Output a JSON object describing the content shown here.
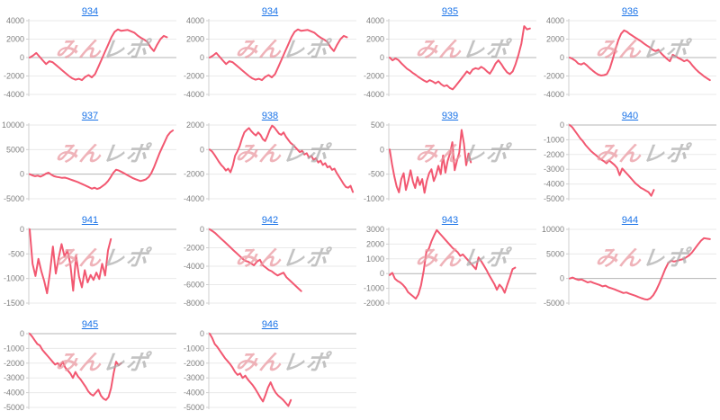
{
  "page": {
    "background": "#ffffff"
  },
  "watermark": {
    "part1": "みん",
    "part2": "レポ"
  },
  "style": {
    "line_color": "#f25871",
    "link_color": "#1a73e8",
    "axis_label_color": "#7f7f7f",
    "grid_color": "#eaeaea",
    "zero_line_color": "#b4b4b4",
    "axis_line_color": "#cfcfcf",
    "watermark_part1_color": "rgba(233,153,161,0.75)",
    "watermark_part2_color": "rgba(172,172,172,0.72)"
  },
  "chart_data": [
    {
      "type": "line",
      "title": "934",
      "ylim": [
        -4000,
        4000
      ],
      "y_ticks": [
        4000,
        2000,
        0,
        -2000,
        -4000
      ],
      "x_span": 0.93,
      "values": [
        0,
        200,
        500,
        100,
        -300,
        -700,
        -400,
        -500,
        -800,
        -1100,
        -1400,
        -1700,
        -2000,
        -2250,
        -2400,
        -2300,
        -2450,
        -2100,
        -1900,
        -2150,
        -1800,
        -1000,
        -200,
        600,
        1400,
        2200,
        2800,
        3050,
        2900,
        2950,
        3000,
        2850,
        2700,
        2400,
        2150,
        1950,
        1700,
        1100,
        700,
        1400,
        2000,
        2350,
        2200
      ]
    },
    {
      "type": "line",
      "title": "934",
      "ylim": [
        -4000,
        4000
      ],
      "y_ticks": [
        4000,
        2000,
        0,
        -2000,
        -4000
      ],
      "x_span": 0.93,
      "values": [
        0,
        200,
        500,
        100,
        -300,
        -700,
        -400,
        -500,
        -800,
        -1100,
        -1400,
        -1700,
        -2000,
        -2250,
        -2400,
        -2300,
        -2450,
        -2100,
        -1900,
        -2150,
        -1800,
        -1000,
        -200,
        600,
        1400,
        2200,
        2800,
        3050,
        2900,
        2950,
        3000,
        2850,
        2700,
        2400,
        2150,
        1950,
        1700,
        1100,
        700,
        1400,
        2000,
        2350,
        2200
      ]
    },
    {
      "type": "line",
      "title": "935",
      "ylim": [
        -4000,
        4000
      ],
      "y_ticks": [
        4000,
        2000,
        0,
        -2000,
        -4000
      ],
      "x_span": 0.95,
      "values": [
        0,
        -300,
        -100,
        -250,
        -600,
        -900,
        -1200,
        -1400,
        -1650,
        -1850,
        -2100,
        -2300,
        -2500,
        -2650,
        -2450,
        -2600,
        -2800,
        -2600,
        -2900,
        -3100,
        -3000,
        -3300,
        -3450,
        -3100,
        -2700,
        -2300,
        -1900,
        -1500,
        -1750,
        -1300,
        -1150,
        -1250,
        -1000,
        -1200,
        -1500,
        -1750,
        -1250,
        -650,
        -300,
        -700,
        -1200,
        -1600,
        -1800,
        -1500,
        -700,
        300,
        1500,
        3400,
        3050,
        3150
      ]
    },
    {
      "type": "line",
      "title": "936",
      "ylim": [
        -4000,
        4000
      ],
      "y_ticks": [
        4000,
        2000,
        0,
        -2000,
        -4000
      ],
      "x_span": 0.95,
      "values": [
        0,
        -150,
        -350,
        -650,
        -750,
        -600,
        -850,
        -1150,
        -1400,
        -1650,
        -1850,
        -1950,
        -1900,
        -1800,
        -1200,
        -200,
        900,
        1900,
        2600,
        2950,
        2800,
        2550,
        2350,
        2150,
        1950,
        1750,
        1500,
        1300,
        1100,
        850,
        700,
        850,
        450,
        150,
        -150,
        -400,
        300,
        150,
        -50,
        -200,
        -400,
        -250,
        -500,
        -900,
        -1250,
        -1550,
        -1800,
        -2050,
        -2250,
        -2450
      ]
    },
    {
      "type": "line",
      "title": "937",
      "ylim": [
        -5000,
        10000
      ],
      "y_ticks": [
        10000,
        5000,
        0,
        -5000
      ],
      "x_span": 0.97,
      "values": [
        0,
        -250,
        -400,
        -300,
        -500,
        -250,
        100,
        300,
        -100,
        -400,
        -550,
        -650,
        -750,
        -700,
        -850,
        -1050,
        -1250,
        -1450,
        -1650,
        -1900,
        -2150,
        -2400,
        -2650,
        -2950,
        -2750,
        -3000,
        -2800,
        -2400,
        -2000,
        -1400,
        -600,
        300,
        900,
        750,
        450,
        150,
        -150,
        -450,
        -750,
        -1000,
        -1200,
        -1400,
        -1250,
        -1050,
        -600,
        200,
        1400,
        2800,
        4200,
        5400,
        6600,
        7800,
        8500,
        8900
      ]
    },
    {
      "type": "line",
      "title": "938",
      "ylim": [
        -4000,
        2000
      ],
      "y_ticks": [
        2000,
        0,
        -2000,
        -4000
      ],
      "x_span": 0.97,
      "values": [
        0,
        -150,
        -400,
        -700,
        -1000,
        -1250,
        -1450,
        -1700,
        -1550,
        -1850,
        -1300,
        -500,
        -150,
        300,
        900,
        1400,
        1600,
        1750,
        1500,
        1300,
        1150,
        1400,
        1200,
        850,
        700,
        1100,
        1600,
        1950,
        1800,
        1550,
        1300,
        1200,
        1400,
        1050,
        800,
        550,
        400,
        200,
        0,
        -200,
        -100,
        -400,
        -300,
        -650,
        -500,
        -850,
        -700,
        -1050,
        -900,
        -1250,
        -1100,
        -1450,
        -1350,
        -1650,
        -1550,
        -1900,
        -2200,
        -2500,
        -2800,
        -3050,
        -3100,
        -2950,
        -3450
      ]
    },
    {
      "type": "line",
      "title": "939",
      "ylim": [
        -1000,
        500
      ],
      "y_ticks": [
        500,
        0,
        -500,
        -1000
      ],
      "x_span": 0.55,
      "values": [
        0,
        -300,
        -550,
        -750,
        -870,
        -600,
        -480,
        -820,
        -640,
        -420,
        -650,
        -780,
        -560,
        -720,
        -600,
        -880,
        -640,
        -480,
        -400,
        -640,
        -520,
        -330,
        -500,
        -120,
        -470,
        -230,
        -80,
        150,
        -420,
        -230,
        -60,
        400,
        120,
        -320,
        -80,
        -260
      ]
    },
    {
      "type": "line",
      "title": "940",
      "ylim": [
        -5000,
        0
      ],
      "y_ticks": [
        0,
        -1000,
        -2000,
        -3000,
        -4000,
        -5000
      ],
      "x_span": 0.57,
      "values": [
        0,
        -150,
        -400,
        -650,
        -900,
        -1100,
        -1350,
        -1550,
        -1750,
        -1900,
        -2050,
        -2200,
        -2350,
        -2450,
        -2600,
        -2400,
        -2550,
        -2700,
        -2900,
        -3400,
        -2950,
        -3150,
        -3350,
        -3550,
        -3750,
        -3950,
        -4100,
        -4250,
        -4350,
        -4450,
        -4550,
        -4800,
        -4400
      ]
    },
    {
      "type": "line",
      "title": "941",
      "ylim": [
        -1500,
        0
      ],
      "y_ticks": [
        0,
        -500,
        -1000,
        -1500
      ],
      "x_span": 0.55,
      "values": [
        0,
        -700,
        -950,
        -600,
        -850,
        -1050,
        -1300,
        -880,
        -350,
        -900,
        -580,
        -300,
        -550,
        -430,
        -700,
        -1250,
        -540,
        -960,
        -1180,
        -830,
        -1080,
        -930,
        -1030,
        -880,
        -1010,
        -700,
        -940,
        -430,
        -200
      ]
    },
    {
      "type": "line",
      "title": "942",
      "ylim": [
        -8000,
        0
      ],
      "y_ticks": [
        0,
        -2000,
        -4000,
        -6000,
        -8000
      ],
      "x_span": 0.62,
      "values": [
        0,
        -200,
        -450,
        -750,
        -1050,
        -1350,
        -1650,
        -1950,
        -2250,
        -2550,
        -2850,
        -3150,
        -3400,
        -3500,
        -3700,
        -3900,
        -3500,
        -3300,
        -3900,
        -4150,
        -4400,
        -4550,
        -4800,
        -5000,
        -4850,
        -4700,
        -5200,
        -5500,
        -5800,
        -6100,
        -6400,
        -6700
      ]
    },
    {
      "type": "line",
      "title": "943",
      "ylim": [
        -2000,
        3000
      ],
      "y_ticks": [
        3000,
        2000,
        1000,
        0,
        -1000,
        -2000
      ],
      "x_span": 0.85,
      "values": [
        -100,
        50,
        -350,
        -500,
        -600,
        -750,
        -950,
        -1250,
        -1400,
        -1550,
        -1700,
        -1400,
        -800,
        200,
        1450,
        1700,
        2200,
        2600,
        2950,
        2750,
        2550,
        2350,
        2150,
        1950,
        1750,
        1600,
        1450,
        1200,
        1300,
        1100,
        900,
        700,
        500,
        300,
        1100,
        850,
        550,
        250,
        -100,
        -400,
        -700,
        -1100,
        -750,
        -950,
        -1300,
        -750,
        -250,
        300,
        400
      ]
    },
    {
      "type": "line",
      "title": "944",
      "ylim": [
        -5000,
        10000
      ],
      "y_ticks": [
        10000,
        5000,
        0,
        -5000
      ],
      "x_span": 0.95,
      "values": [
        0,
        200,
        -100,
        -300,
        -200,
        -500,
        -800,
        -650,
        -900,
        -1100,
        -1300,
        -1600,
        -1450,
        -1800,
        -2000,
        -2200,
        -2450,
        -2700,
        -2950,
        -2850,
        -3100,
        -3300,
        -3500,
        -3750,
        -4000,
        -4200,
        -4300,
        -4050,
        -3400,
        -2400,
        -1100,
        400,
        1900,
        3100,
        3600,
        3450,
        3600,
        3800,
        3950,
        4300,
        4700,
        5300,
        6100,
        6900,
        7700,
        8200,
        8100,
        8000
      ]
    },
    {
      "type": "line",
      "title": "945",
      "ylim": [
        -5000,
        0
      ],
      "y_ticks": [
        0,
        -1000,
        -2000,
        -3000,
        -4000,
        -5000
      ],
      "x_span": 0.62,
      "values": [
        0,
        -200,
        -450,
        -700,
        -800,
        -1100,
        -1300,
        -1500,
        -1700,
        -1900,
        -2100,
        -2000,
        -2200,
        -1900,
        -2300,
        -2500,
        -2700,
        -3000,
        -2600,
        -2900,
        -3100,
        -3350,
        -3600,
        -3900,
        -4100,
        -4200,
        -4000,
        -3800,
        -4200,
        -4400,
        -4500,
        -4300,
        -3700,
        -2700,
        -1900,
        -2150,
        -2000
      ]
    },
    {
      "type": "line",
      "title": "946",
      "ylim": [
        -5000,
        0
      ],
      "y_ticks": [
        0,
        -1000,
        -2000,
        -3000,
        -4000,
        -5000
      ],
      "x_span": 0.55,
      "values": [
        0,
        -300,
        -700,
        -900,
        -1150,
        -1400,
        -1650,
        -1850,
        -2050,
        -2300,
        -2600,
        -2800,
        -2700,
        -3000,
        -2850,
        -3100,
        -3300,
        -3500,
        -3750,
        -4050,
        -4350,
        -4600,
        -4150,
        -3650,
        -3300,
        -3700,
        -4000,
        -4200,
        -4350,
        -4500,
        -4700,
        -4900,
        -4500
      ]
    }
  ]
}
